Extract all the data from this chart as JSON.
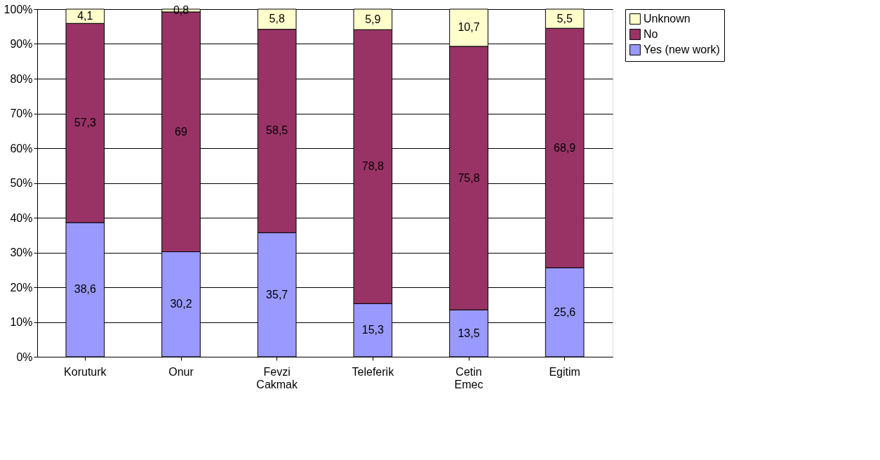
{
  "chart_data": {
    "type": "bar",
    "stacked": true,
    "categories": [
      "Koruturk",
      "Onur",
      "Fevzi Cakmak",
      "Teleferik",
      "Cetin Emec",
      "Egitim"
    ],
    "series": [
      {
        "name": "Yes (new work)",
        "color": "#9999ff",
        "values": [
          38.6,
          30.2,
          35.7,
          15.3,
          13.5,
          25.6
        ],
        "value_labels": [
          "38,6",
          "30,2",
          "35,7",
          "15,3",
          "13,5",
          "25,6"
        ]
      },
      {
        "name": "No",
        "color": "#993366",
        "values": [
          57.3,
          69,
          58.5,
          78.8,
          75.8,
          68.9
        ],
        "value_labels": [
          "57,3",
          "69",
          "58,5",
          "78,8",
          "75,8",
          "68,9"
        ]
      },
      {
        "name": "Unknown",
        "color": "#ffffcc",
        "values": [
          4.1,
          0.8,
          5.8,
          5.9,
          10.7,
          5.5
        ],
        "value_labels": [
          "4,1",
          "0,8",
          "5,8",
          "5,9",
          "10,7",
          "5,5"
        ]
      }
    ],
    "ylim": [
      0,
      100
    ],
    "yticks": [
      {
        "value": 0,
        "label": "0%"
      },
      {
        "value": 10,
        "label": "10%"
      },
      {
        "value": 20,
        "label": "20%"
      },
      {
        "value": 30,
        "label": "30%"
      },
      {
        "value": 40,
        "label": "40%"
      },
      {
        "value": 50,
        "label": "50%"
      },
      {
        "value": 60,
        "label": "60%"
      },
      {
        "value": 70,
        "label": "70%"
      },
      {
        "value": 80,
        "label": "80%"
      },
      {
        "value": 90,
        "label": "90%"
      },
      {
        "value": 100,
        "label": "100%"
      }
    ],
    "grid": "y",
    "legend": "right"
  }
}
